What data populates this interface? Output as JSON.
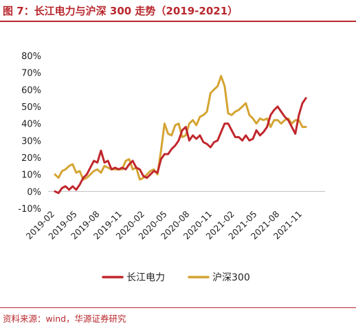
{
  "header": {
    "title": "图 7：长江电力与沪深 300 走势（2019-2021）"
  },
  "footer": {
    "source": "资料来源：wind，华源证券研究"
  },
  "chart_data": {
    "type": "line",
    "ylim": [
      -10,
      80
    ],
    "yticks": [
      "80%",
      "70%",
      "60%",
      "50%",
      "40%",
      "30%",
      "20%",
      "10%",
      "0%",
      "-10%"
    ],
    "ytick_values": [
      80,
      70,
      60,
      50,
      40,
      30,
      20,
      10,
      0,
      -10
    ],
    "xticks": [
      "2019-02",
      "2019-05",
      "2019-08",
      "2019-11",
      "2020-02",
      "2020-05",
      "2020-08",
      "2020-11",
      "2021-02",
      "2021-05",
      "2021-08",
      "2021-11"
    ],
    "xrange": [
      0,
      35
    ],
    "legend_position": "bottom",
    "series": [
      {
        "name": "长江电力",
        "color": "#c0272d",
        "points": [
          [
            0,
            0
          ],
          [
            0.5,
            -1
          ],
          [
            1,
            2
          ],
          [
            1.5,
            3
          ],
          [
            2,
            1
          ],
          [
            2.5,
            3
          ],
          [
            3,
            1
          ],
          [
            3.5,
            4
          ],
          [
            4,
            8
          ],
          [
            4.5,
            10
          ],
          [
            5,
            14
          ],
          [
            5.5,
            18
          ],
          [
            6,
            17
          ],
          [
            6.5,
            24
          ],
          [
            7,
            17
          ],
          [
            7.5,
            18
          ],
          [
            8,
            13
          ],
          [
            8.5,
            14
          ],
          [
            9,
            13
          ],
          [
            9.5,
            14
          ],
          [
            10,
            13
          ],
          [
            10.5,
            16
          ],
          [
            11,
            18
          ],
          [
            11.5,
            14
          ],
          [
            12,
            13
          ],
          [
            12.5,
            9
          ],
          [
            13,
            8
          ],
          [
            13.5,
            10
          ],
          [
            14,
            12
          ],
          [
            14.5,
            11
          ],
          [
            15,
            19
          ],
          [
            15.5,
            22
          ],
          [
            16,
            22
          ],
          [
            16.5,
            25
          ],
          [
            17,
            27
          ],
          [
            17.5,
            30
          ],
          [
            18,
            36
          ],
          [
            18.5,
            38
          ],
          [
            19,
            30
          ],
          [
            19.5,
            33
          ],
          [
            20,
            31
          ],
          [
            20.5,
            33
          ],
          [
            21,
            29
          ],
          [
            21.5,
            28
          ],
          [
            22,
            26
          ],
          [
            22.5,
            29
          ],
          [
            23,
            30
          ],
          [
            23.5,
            35
          ],
          [
            24,
            40
          ],
          [
            24.5,
            40
          ],
          [
            25,
            36
          ],
          [
            25.5,
            32
          ],
          [
            26,
            32
          ],
          [
            26.5,
            30
          ],
          [
            27,
            33
          ],
          [
            27.5,
            30
          ],
          [
            28,
            31
          ],
          [
            28.5,
            36
          ],
          [
            29,
            33
          ],
          [
            29.5,
            35
          ],
          [
            30,
            38
          ],
          [
            30.5,
            45
          ],
          [
            31,
            48
          ],
          [
            31.5,
            50
          ],
          [
            32,
            47
          ],
          [
            32.5,
            44
          ],
          [
            33,
            42
          ],
          [
            33.5,
            38
          ],
          [
            34,
            34
          ],
          [
            34.5,
            45
          ],
          [
            35,
            52
          ],
          [
            35.5,
            55
          ]
        ]
      },
      {
        "name": "沪深300",
        "color": "#d4a432",
        "points": [
          [
            0,
            10
          ],
          [
            0.5,
            8
          ],
          [
            1,
            12
          ],
          [
            1.5,
            13
          ],
          [
            2,
            15
          ],
          [
            2.5,
            16
          ],
          [
            3,
            11
          ],
          [
            3.5,
            12
          ],
          [
            4,
            7
          ],
          [
            4.5,
            8
          ],
          [
            5,
            10
          ],
          [
            5.5,
            12
          ],
          [
            6,
            13
          ],
          [
            6.5,
            11
          ],
          [
            7,
            15
          ],
          [
            7.5,
            14
          ],
          [
            8,
            13
          ],
          [
            8.5,
            13
          ],
          [
            9,
            13
          ],
          [
            9.5,
            13
          ],
          [
            10,
            18
          ],
          [
            10.5,
            19
          ],
          [
            11,
            13
          ],
          [
            11.5,
            14
          ],
          [
            12,
            7
          ],
          [
            12.5,
            8
          ],
          [
            13,
            10
          ],
          [
            13.5,
            12
          ],
          [
            14,
            13
          ],
          [
            14.5,
            10
          ],
          [
            15,
            24
          ],
          [
            15.5,
            40
          ],
          [
            16,
            34
          ],
          [
            16.5,
            33
          ],
          [
            17,
            39
          ],
          [
            17.5,
            40
          ],
          [
            18,
            32
          ],
          [
            18.5,
            33
          ],
          [
            19,
            40
          ],
          [
            19.5,
            42
          ],
          [
            20,
            39
          ],
          [
            20.5,
            44
          ],
          [
            21,
            45
          ],
          [
            21.5,
            47
          ],
          [
            22,
            58
          ],
          [
            22.5,
            60
          ],
          [
            23,
            62
          ],
          [
            23.5,
            68
          ],
          [
            24,
            62
          ],
          [
            24.5,
            46
          ],
          [
            25,
            45
          ],
          [
            25.5,
            47
          ],
          [
            26,
            48
          ],
          [
            26.5,
            50
          ],
          [
            27,
            52
          ],
          [
            27.5,
            45
          ],
          [
            28,
            43
          ],
          [
            28.5,
            40
          ],
          [
            29,
            43
          ],
          [
            29.5,
            42
          ],
          [
            30,
            43
          ],
          [
            30.5,
            38
          ],
          [
            31,
            42
          ],
          [
            31.5,
            42
          ],
          [
            32,
            40
          ],
          [
            32.5,
            42
          ],
          [
            33,
            43
          ],
          [
            33.5,
            40
          ],
          [
            34,
            42
          ],
          [
            34.5,
            42
          ],
          [
            35,
            38
          ],
          [
            35.5,
            38
          ]
        ]
      }
    ]
  }
}
